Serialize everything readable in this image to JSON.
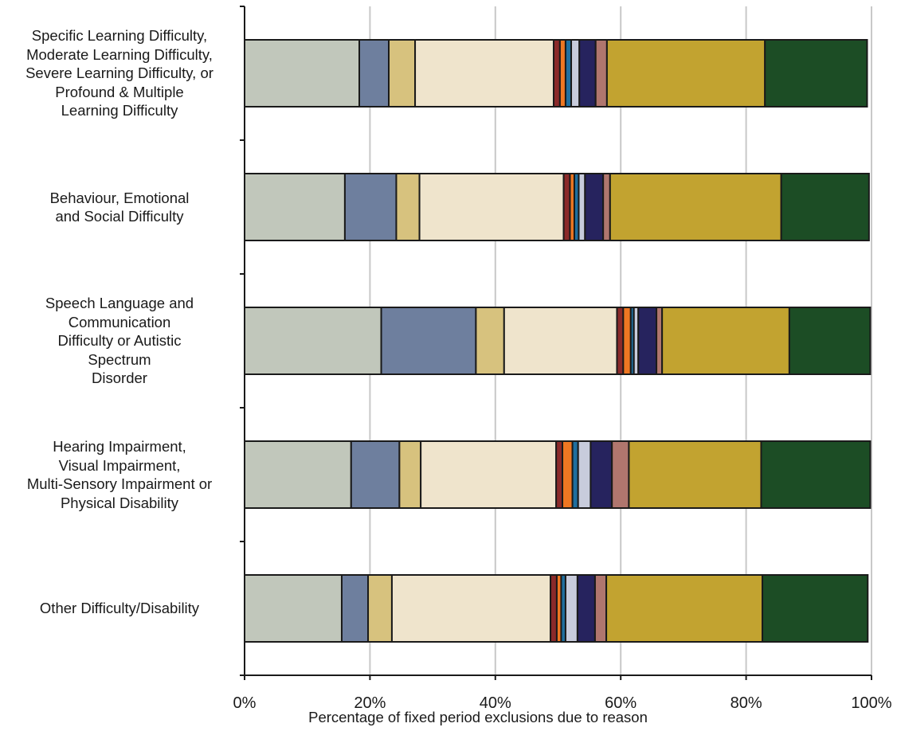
{
  "chart_data": {
    "type": "bar",
    "orientation": "horizontal",
    "stacked": true,
    "percent_stacked": true,
    "title": "",
    "xlabel": "Percentage of fixed period exclusions due to reason",
    "ylabel": "",
    "xlim": [
      0,
      100
    ],
    "x_ticks": [
      "0%",
      "20%",
      "40%",
      "60%",
      "80%",
      "100%"
    ],
    "grid": true,
    "legend": "none",
    "categories": [
      [
        "Specific Learning Difficulty,",
        "Moderate Learning Difficulty,",
        "Severe Learning Difficulty, or",
        "Profound & Multiple",
        "Learning Difficulty"
      ],
      [
        "Behaviour, Emotional",
        "and Social Difficulty"
      ],
      [
        "Speech Language and",
        "Communication",
        "Difficulty or Autistic",
        "Spectrum",
        "Disorder"
      ],
      [
        "Hearing Impairment,",
        "Visual Impairment,",
        "Multi-Sensory Impairment or",
        "Physical Disability"
      ],
      [
        "Other Difficulty/Disability"
      ]
    ],
    "series": [
      {
        "color": "#c1c7bb",
        "values": [
          18.3,
          16.0,
          21.8,
          17.0,
          15.5
        ]
      },
      {
        "color": "#6e7f9e",
        "values": [
          4.7,
          8.2,
          15.1,
          7.7,
          4.2
        ]
      },
      {
        "color": "#d7c27e",
        "values": [
          4.2,
          3.7,
          4.5,
          3.4,
          3.8
        ]
      },
      {
        "color": "#efe4cc",
        "values": [
          22.1,
          23.0,
          18.0,
          21.6,
          25.3
        ]
      },
      {
        "color": "#8b2a2a",
        "values": [
          1.0,
          1.0,
          1.0,
          1.0,
          1.0
        ]
      },
      {
        "color": "#ee7722",
        "values": [
          0.9,
          0.7,
          1.2,
          1.6,
          0.7
        ]
      },
      {
        "color": "#1f6f9f",
        "values": [
          0.9,
          0.7,
          0.5,
          0.9,
          0.7
        ]
      },
      {
        "color": "#c8ccdc",
        "values": [
          1.3,
          1.0,
          0.7,
          2.0,
          1.9
        ]
      },
      {
        "color": "#26235e",
        "values": [
          2.6,
          2.9,
          2.9,
          3.4,
          2.8
        ]
      },
      {
        "color": "#b0766e",
        "values": [
          1.8,
          1.1,
          0.9,
          2.7,
          1.8
        ]
      },
      {
        "color": "#c2a330",
        "values": [
          25.2,
          27.3,
          20.3,
          21.1,
          24.9
        ]
      },
      {
        "color": "#1c4d25",
        "values": [
          16.3,
          14.0,
          12.9,
          17.4,
          16.8
        ]
      }
    ]
  }
}
